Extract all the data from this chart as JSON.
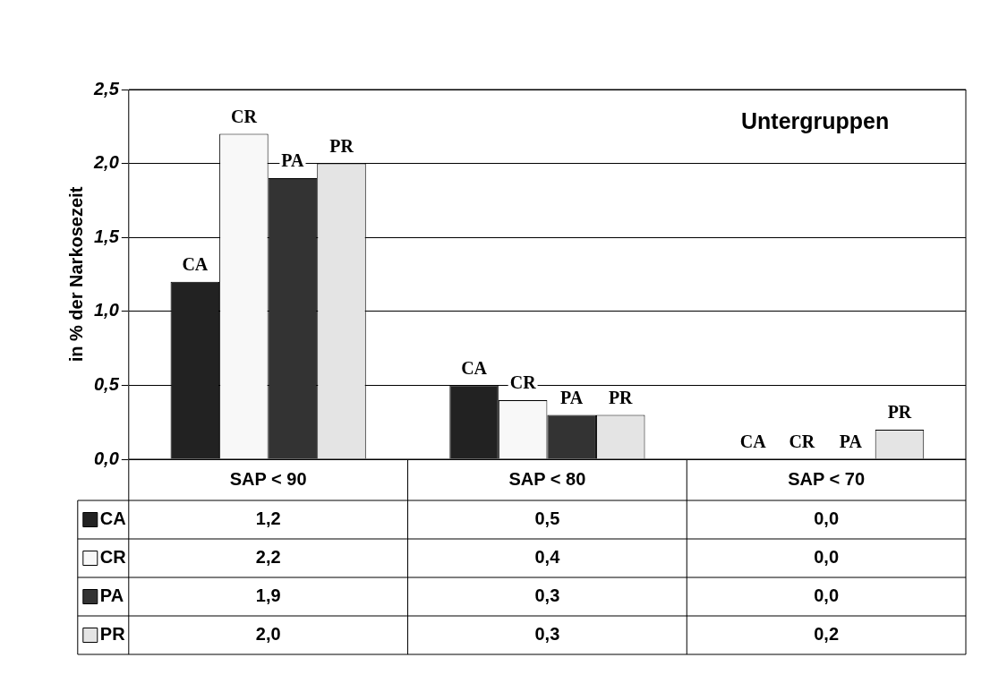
{
  "chart_data": {
    "type": "bar",
    "title": "Untergruppen",
    "ylabel": "in % der Narkosezeit",
    "categories": [
      "SAP < 90",
      "SAP < 80",
      "SAP < 70"
    ],
    "series": [
      {
        "name": "CA",
        "color": "#222222",
        "values": [
          1.2,
          0.5,
          0.0
        ],
        "value_labels": [
          "1,2",
          "0,5",
          "0,0"
        ]
      },
      {
        "name": "CR",
        "color": "#f8f8f8",
        "values": [
          2.2,
          0.4,
          0.0
        ],
        "value_labels": [
          "2,2",
          "0,4",
          "0,0"
        ]
      },
      {
        "name": "PA",
        "color": "#333333",
        "values": [
          1.9,
          0.3,
          0.0
        ],
        "value_labels": [
          "1,9",
          "0,3",
          "0,0"
        ]
      },
      {
        "name": "PR",
        "color": "#e4e4e4",
        "values": [
          2.0,
          0.3,
          0.2
        ],
        "value_labels": [
          "2,0",
          "0,3",
          "0,2"
        ]
      }
    ],
    "ylim": [
      0,
      2.5
    ],
    "yticks": [
      {
        "value": 0,
        "label": "0,0"
      },
      {
        "value": 0.5,
        "label": "0,5"
      },
      {
        "value": 1,
        "label": "1,0"
      },
      {
        "value": 1.5,
        "label": "1,5"
      },
      {
        "value": 2,
        "label": "2,0"
      },
      {
        "value": 2.5,
        "label": "2,5"
      }
    ],
    "grid": "y",
    "legend": "bottom"
  }
}
